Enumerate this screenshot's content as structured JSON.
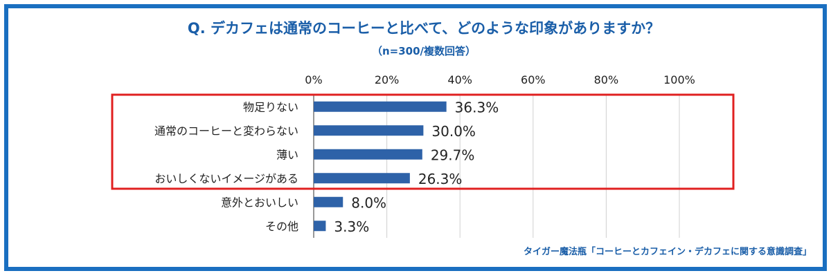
{
  "chart_data": {
    "type": "bar",
    "orientation": "horizontal",
    "title": "Q. デカフェは通常のコーヒーと比べて、どのような印象がありますか？",
    "subtitle": "（n=300/複数回答）",
    "categories": [
      "物足りない",
      "通常のコーヒーと変わらない",
      "薄い",
      "おいしくないイメージがある",
      "意外とおいしい",
      "その他"
    ],
    "values": [
      36.3,
      30.0,
      29.7,
      26.3,
      8.0,
      3.3
    ],
    "value_labels": [
      "36.3%",
      "30.0%",
      "29.7%",
      "26.3%",
      "8.0%",
      "3.3%"
    ],
    "x_ticks": [
      "0%",
      "20%",
      "40%",
      "60%",
      "80%",
      "100%"
    ],
    "xlim": [
      0,
      100
    ],
    "grid": true,
    "highlighted_categories": [
      "物足りない",
      "通常のコーヒーと変わらない",
      "薄い",
      "おいしくないイメージがある"
    ],
    "colors": {
      "bar": "#2e62a8",
      "frame": "#1a6fc0",
      "highlight": "#e02020",
      "title": "#1a5ea8"
    }
  },
  "source": "タイガー魔法瓶「コーヒーとカフェイン・デカフェに関する意識調査」"
}
